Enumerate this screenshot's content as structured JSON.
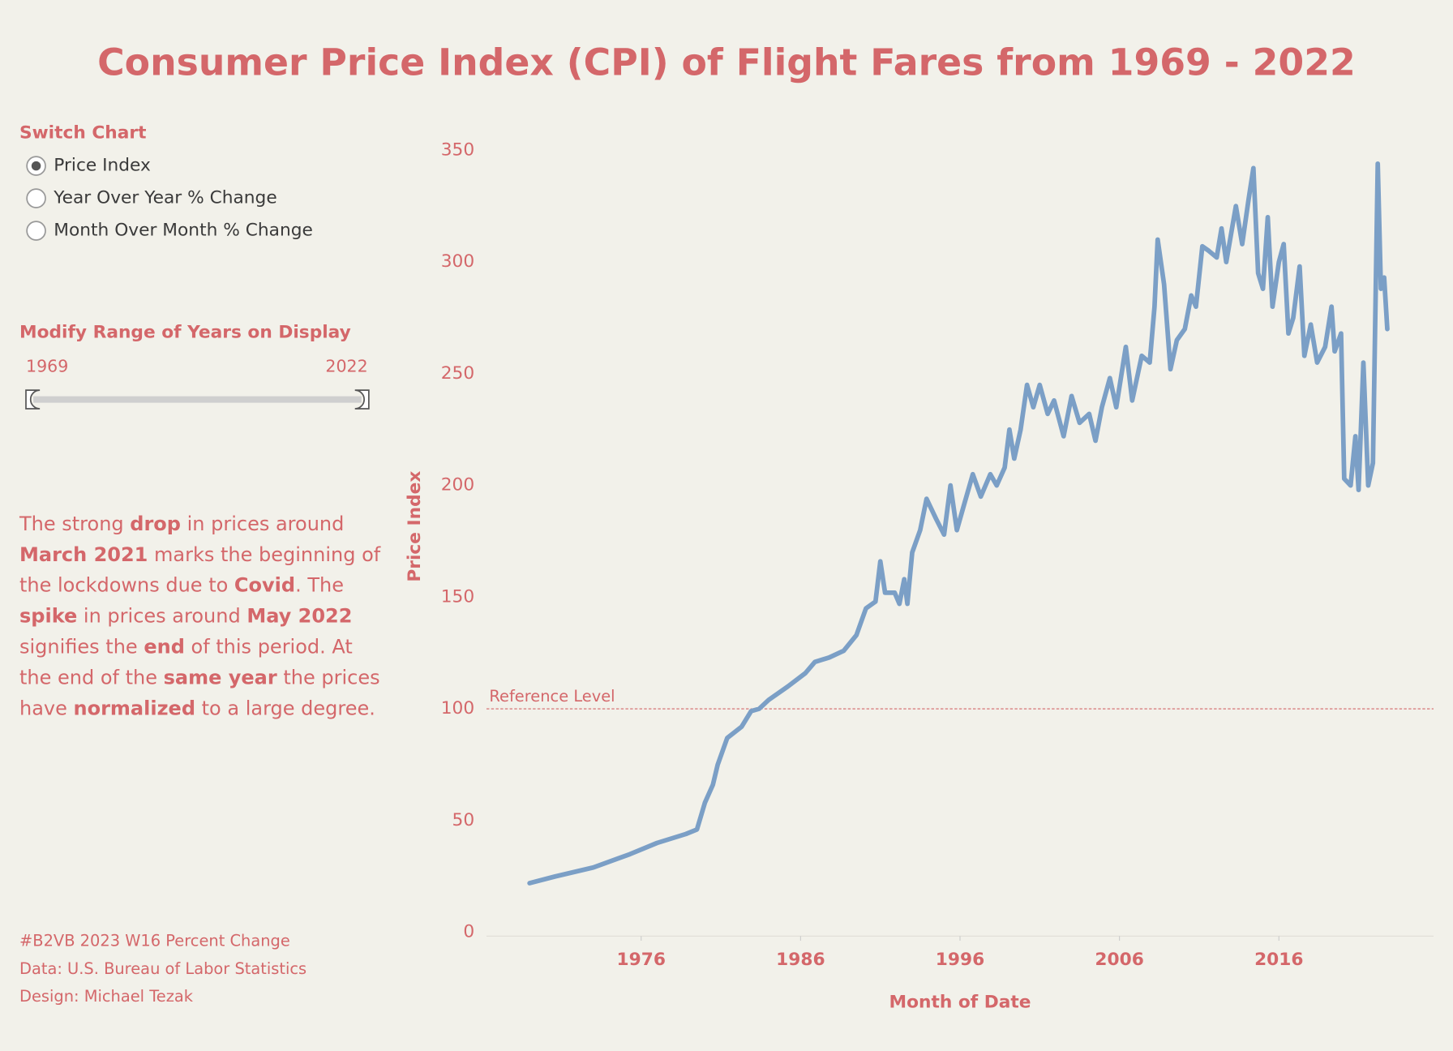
{
  "title": "Consumer Price Index (CPI) of Flight Fares from 1969 - 2022",
  "switch_chart": {
    "title": "Switch Chart",
    "options": [
      "Price Index",
      "Year Over Year % Change",
      "Month Over Month % Change"
    ],
    "selected": 0
  },
  "range_filter": {
    "title": "Modify Range of Years on Display",
    "min_label": "1969",
    "max_label": "2022"
  },
  "note": [
    [
      {
        "text": "The strong ",
        "bold": false
      },
      {
        "text": "drop",
        "bold": true
      },
      {
        "text": " in prices around",
        "bold": false
      }
    ],
    [
      {
        "text": "March 2021",
        "bold": true
      },
      {
        "text": " marks the beginning of",
        "bold": false
      }
    ],
    [
      {
        "text": "the lockdowns due to ",
        "bold": false
      },
      {
        "text": "Covid",
        "bold": true
      },
      {
        "text": ". The",
        "bold": false
      }
    ],
    [
      {
        "text": "spike",
        "bold": true
      },
      {
        "text": " in prices around ",
        "bold": false
      },
      {
        "text": "May 2022",
        "bold": true
      }
    ],
    [
      {
        "text": "signifies the ",
        "bold": false
      },
      {
        "text": "end",
        "bold": true
      },
      {
        "text": " of this period. At",
        "bold": false
      }
    ],
    [
      {
        "text": "the end of the ",
        "bold": false
      },
      {
        "text": "same year",
        "bold": true
      },
      {
        "text": " the prices",
        "bold": false
      }
    ],
    [
      {
        "text": "have ",
        "bold": false
      },
      {
        "text": "normalized",
        "bold": true
      },
      {
        "text": " to a large degree.",
        "bold": false
      }
    ]
  ],
  "footer": [
    "#B2VB 2023 W16 Percent Change",
    "Data: U.S. Bureau of Labor Statistics",
    "Design: Michael Tezak"
  ],
  "chart_data": {
    "type": "line",
    "x_label": "Month of Date",
    "y_label": "Price Index",
    "x": [
      1969.0,
      1970.6,
      1973.0,
      1975.3,
      1977.0,
      1978.8,
      1979.5,
      1980.0,
      1980.5,
      1980.8,
      1981.4,
      1982.3,
      1982.9,
      1983.4,
      1984.0,
      1985.2,
      1986.3,
      1986.9,
      1987.8,
      1988.7,
      1989.5,
      1990.1,
      1990.7,
      1991.0,
      1991.3,
      1991.9,
      1992.2,
      1992.5,
      1992.7,
      1993.0,
      1993.5,
      1993.9,
      1994.5,
      1995.0,
      1995.4,
      1995.8,
      1996.2,
      1996.8,
      1997.3,
      1997.9,
      1998.3,
      1998.8,
      1999.1,
      1999.4,
      1999.8,
      2000.2,
      2000.6,
      2001.0,
      2001.5,
      2001.9,
      2002.5,
      2003.0,
      2003.5,
      2004.1,
      2004.5,
      2004.9,
      2005.4,
      2005.8,
      2006.4,
      2006.8,
      2007.4,
      2007.9,
      2008.2,
      2008.4,
      2008.8,
      2009.2,
      2009.6,
      2010.1,
      2010.5,
      2010.8,
      2011.2,
      2011.6,
      2012.1,
      2012.4,
      2012.7,
      2013.3,
      2013.7,
      2014.1,
      2014.4,
      2014.7,
      2015.0,
      2015.3,
      2015.6,
      2016.0,
      2016.3,
      2016.6,
      2016.9,
      2017.3,
      2017.6,
      2018.0,
      2018.4,
      2018.9,
      2019.3,
      2019.5,
      2019.9,
      2020.1,
      2020.5,
      2020.8,
      2021.0,
      2021.3,
      2021.6,
      2021.9,
      2022.2,
      2022.4,
      2022.6,
      2022.8
    ],
    "series": [
      {
        "name": "Price Index",
        "color": "#7b9fc6",
        "values": [
          22,
          25,
          29,
          35,
          40,
          44,
          46,
          58,
          66,
          75,
          87,
          92,
          99,
          100,
          104,
          110,
          116,
          121,
          123,
          126,
          133,
          145,
          148,
          166,
          152,
          152,
          147,
          158,
          147,
          170,
          180,
          194,
          185,
          178,
          200,
          180,
          190,
          205,
          195,
          205,
          200,
          208,
          225,
          212,
          225,
          245,
          235,
          245,
          232,
          238,
          222,
          240,
          228,
          232,
          220,
          235,
          248,
          235,
          262,
          238,
          258,
          255,
          280,
          310,
          290,
          252,
          265,
          270,
          285,
          280,
          307,
          305,
          302,
          315,
          300,
          325,
          308,
          328,
          342,
          295,
          288,
          320,
          280,
          300,
          308,
          268,
          275,
          298,
          258,
          272,
          255,
          262,
          280,
          260,
          268,
          203,
          200,
          222,
          198,
          255,
          200,
          210,
          344,
          288,
          293,
          270
        ]
      }
    ],
    "xlim": [
      1966.3,
      2025.7
    ],
    "xticks": [
      1976,
      1986,
      1996,
      2006,
      2016
    ],
    "ylim": [
      -5,
      360
    ],
    "yticks": [
      0,
      50,
      100,
      150,
      200,
      250,
      300,
      350
    ],
    "reference_line": {
      "value": 100,
      "label": "Reference Level",
      "color": "#d4676a"
    },
    "grid": false
  }
}
